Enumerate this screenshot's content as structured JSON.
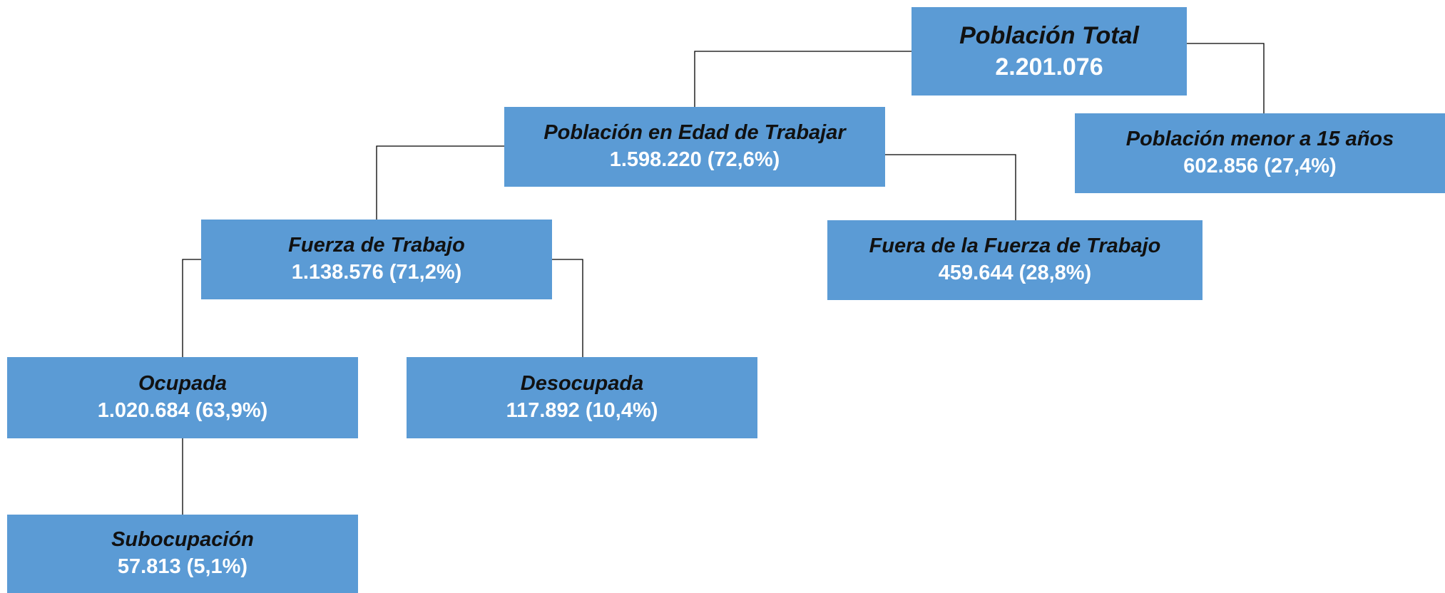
{
  "nodes": [
    {
      "label": "Población Total",
      "value": "2.201.076"
    },
    {
      "label": "Población en Edad de Trabajar",
      "value": "1.598.220 (72,6%)"
    },
    {
      "label": "Población menor a 15 años",
      "value": "602.856 (27,4%)"
    },
    {
      "label": "Fuerza de Trabajo",
      "value": "1.138.576 (71,2%)"
    },
    {
      "label": "Fuera de la Fuerza de Trabajo",
      "value": "459.644 (28,8%)"
    },
    {
      "label": "Ocupada",
      "value": "1.020.684 (63,9%)"
    },
    {
      "label": "Desocupada",
      "value": "117.892 (10,4%)"
    },
    {
      "label": "Subocupación",
      "value": "57.813 (5,1%)"
    }
  ]
}
